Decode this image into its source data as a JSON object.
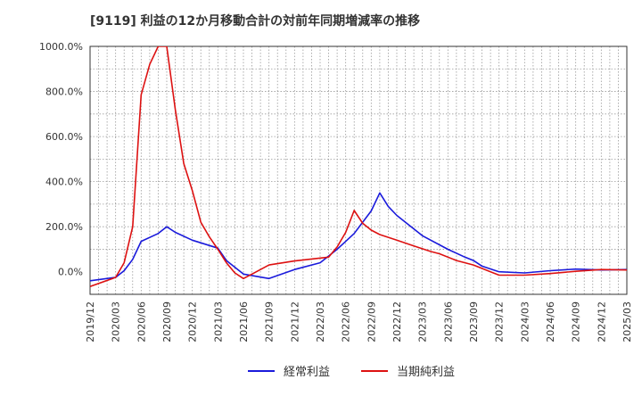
{
  "chart_data": {
    "type": "line",
    "title": "[9119]  利益の12か月移動合計の対前年同期増減率の推移",
    "xlabel": "",
    "ylabel": "",
    "ylim": [
      -100,
      1000
    ],
    "yticks": [
      0,
      200,
      400,
      600,
      800,
      1000
    ],
    "ytick_labels": [
      "0.0%",
      "200.0%",
      "400.0%",
      "600.0%",
      "800.0%",
      "1000.0%"
    ],
    "xticks": [
      "2019/12",
      "2020/03",
      "2020/06",
      "2020/09",
      "2020/12",
      "2021/03",
      "2021/06",
      "2021/09",
      "2021/12",
      "2022/03",
      "2022/06",
      "2022/09",
      "2022/12",
      "2023/03",
      "2023/06",
      "2023/09",
      "2023/12",
      "2024/03",
      "2024/06",
      "2024/09",
      "2024/12",
      "2025/03"
    ],
    "grid": true,
    "legend_position": "bottom",
    "series": [
      {
        "name": "経常利益",
        "color": "#1a1adb",
        "points": [
          {
            "x": 0,
            "y": -40
          },
          {
            "x": 3,
            "y": -25
          },
          {
            "x": 4,
            "y": 5
          },
          {
            "x": 5,
            "y": 55
          },
          {
            "x": 6,
            "y": 135
          },
          {
            "x": 8,
            "y": 170
          },
          {
            "x": 9,
            "y": 200
          },
          {
            "x": 10,
            "y": 175
          },
          {
            "x": 12,
            "y": 140
          },
          {
            "x": 15,
            "y": 105
          },
          {
            "x": 16,
            "y": 50
          },
          {
            "x": 18,
            "y": -10
          },
          {
            "x": 21,
            "y": -30
          },
          {
            "x": 24,
            "y": 10
          },
          {
            "x": 27,
            "y": 40
          },
          {
            "x": 29,
            "y": 100
          },
          {
            "x": 31,
            "y": 170
          },
          {
            "x": 33,
            "y": 270
          },
          {
            "x": 34,
            "y": 350
          },
          {
            "x": 35,
            "y": 290
          },
          {
            "x": 36,
            "y": 250
          },
          {
            "x": 37,
            "y": 220
          },
          {
            "x": 39,
            "y": 160
          },
          {
            "x": 42,
            "y": 100
          },
          {
            "x": 44,
            "y": 65
          },
          {
            "x": 45,
            "y": 50
          },
          {
            "x": 46,
            "y": 25
          },
          {
            "x": 48,
            "y": 0
          },
          {
            "x": 51,
            "y": -5
          },
          {
            "x": 54,
            "y": 5
          },
          {
            "x": 57,
            "y": 12
          },
          {
            "x": 60,
            "y": 8
          },
          {
            "x": 63,
            "y": 10
          }
        ]
      },
      {
        "name": "当期純利益",
        "color": "#dd1111",
        "points": [
          {
            "x": 0,
            "y": -65
          },
          {
            "x": 3,
            "y": -25
          },
          {
            "x": 4,
            "y": 40
          },
          {
            "x": 5,
            "y": 200
          },
          {
            "x": 6,
            "y": 785
          },
          {
            "x": 7,
            "y": 920
          },
          {
            "x": 8,
            "y": 1000
          },
          {
            "x": 9,
            "y": 1000
          },
          {
            "x": 10,
            "y": 720
          },
          {
            "x": 11,
            "y": 480
          },
          {
            "x": 12,
            "y": 360
          },
          {
            "x": 13,
            "y": 220
          },
          {
            "x": 14,
            "y": 155
          },
          {
            "x": 15,
            "y": 100
          },
          {
            "x": 16,
            "y": 40
          },
          {
            "x": 17,
            "y": -5
          },
          {
            "x": 18,
            "y": -30
          },
          {
            "x": 19,
            "y": -10
          },
          {
            "x": 21,
            "y": 30
          },
          {
            "x": 24,
            "y": 48
          },
          {
            "x": 28,
            "y": 65
          },
          {
            "x": 29,
            "y": 110
          },
          {
            "x": 30,
            "y": 175
          },
          {
            "x": 31,
            "y": 272
          },
          {
            "x": 32,
            "y": 215
          },
          {
            "x": 33,
            "y": 185
          },
          {
            "x": 34,
            "y": 165
          },
          {
            "x": 36,
            "y": 140
          },
          {
            "x": 38,
            "y": 115
          },
          {
            "x": 40,
            "y": 90
          },
          {
            "x": 41,
            "y": 80
          },
          {
            "x": 43,
            "y": 50
          },
          {
            "x": 45,
            "y": 30
          },
          {
            "x": 47,
            "y": 0
          },
          {
            "x": 48,
            "y": -15
          },
          {
            "x": 51,
            "y": -15
          },
          {
            "x": 54,
            "y": -8
          },
          {
            "x": 57,
            "y": 2
          },
          {
            "x": 60,
            "y": 10
          },
          {
            "x": 63,
            "y": 8
          }
        ]
      }
    ]
  }
}
